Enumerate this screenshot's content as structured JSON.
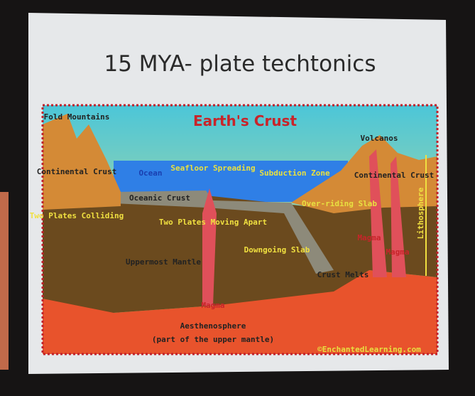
{
  "slide": {
    "title": "15 MYA- plate techtonics"
  },
  "diagram": {
    "title": "Earth's Crust",
    "labels": [
      "Fold Mountains",
      "Volcanos",
      "Continental Crust",
      "Ocean",
      "Seafloor Spreading",
      "Subduction Zone",
      "Continental Crust",
      "Oceanic Crust",
      "Over-riding Slab",
      "Two Plates Colliding",
      "Two Plates Moving Apart",
      "Uppermost Mantle",
      "Downgoing Slab",
      "Magma",
      "Magma",
      "Crust Melts",
      "Lithosphere",
      "Magma",
      "Aesthenosphere",
      "(part of the upper mantle)",
      "©EnchantedLearning.com"
    ]
  }
}
